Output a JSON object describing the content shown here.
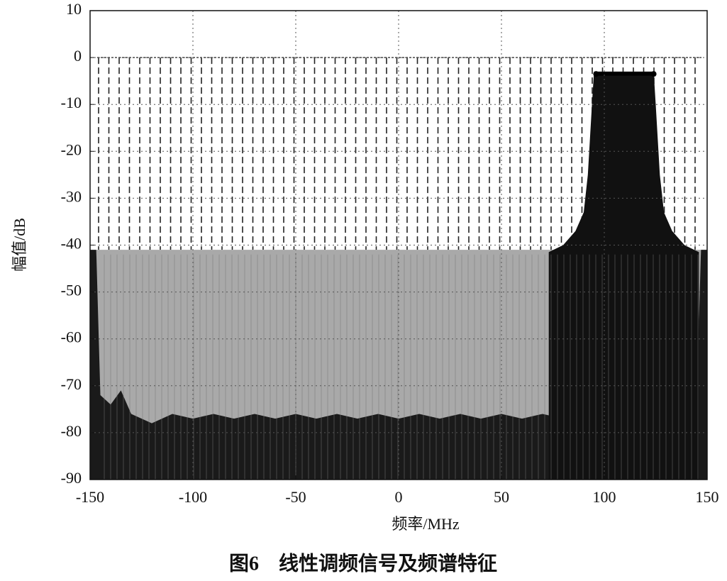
{
  "chart_data": {
    "type": "line",
    "xlabel": "频率/MHz",
    "ylabel": "幅值/dB",
    "caption": "图6　线性调频信号及频谱特征",
    "xlim": [
      -150,
      150
    ],
    "ylim": [
      -90,
      10
    ],
    "xticks": [
      -150,
      -100,
      -50,
      0,
      50,
      100,
      150
    ],
    "yticks": [
      10,
      0,
      -10,
      -20,
      -30,
      -40,
      -50,
      -60,
      -70,
      -80,
      -90
    ],
    "grid": true,
    "series": [
      {
        "color": "#a9a9a9",
        "fill": true,
        "x": [
          -147,
          147
        ],
        "values": [
          -41,
          -41
        ]
      },
      {
        "color": "#1a1a1a",
        "fill": true,
        "x": [
          -150,
          -147,
          -145,
          -140,
          -135,
          -130,
          -120,
          -110,
          -100,
          -90,
          -80,
          -70,
          -60,
          -50,
          -40,
          -30,
          -20,
          -10,
          0,
          10,
          20,
          30,
          40,
          50,
          60,
          70,
          80,
          90,
          100,
          110,
          120,
          130,
          135,
          140,
          145,
          147,
          150
        ],
        "values": [
          -41,
          -41,
          -72,
          -74,
          -71,
          -76,
          -78,
          -76,
          -77,
          -76,
          -77,
          -76,
          -77,
          -76,
          -77,
          -76,
          -77,
          -76,
          -77,
          -76,
          -77,
          -76,
          -77,
          -76,
          -77,
          -76,
          -77,
          -76,
          -77,
          -76,
          -77,
          -75,
          -71,
          -74,
          -72,
          -41,
          -41
        ]
      },
      {
        "color": "#111111",
        "fill": true,
        "x": [
          73,
          80,
          86,
          90,
          92,
          94,
          95,
          124,
          125,
          127,
          129,
          133,
          139,
          146
        ],
        "values": [
          -41.5,
          -40,
          -37,
          -33,
          -25,
          -10,
          -3,
          -3,
          -10,
          -25,
          -33,
          -37,
          -40,
          -41.5
        ]
      },
      {
        "color": "#000000",
        "fill": false,
        "x": [
          96,
          124
        ],
        "values": [
          -3.5,
          -3.5
        ]
      }
    ]
  }
}
